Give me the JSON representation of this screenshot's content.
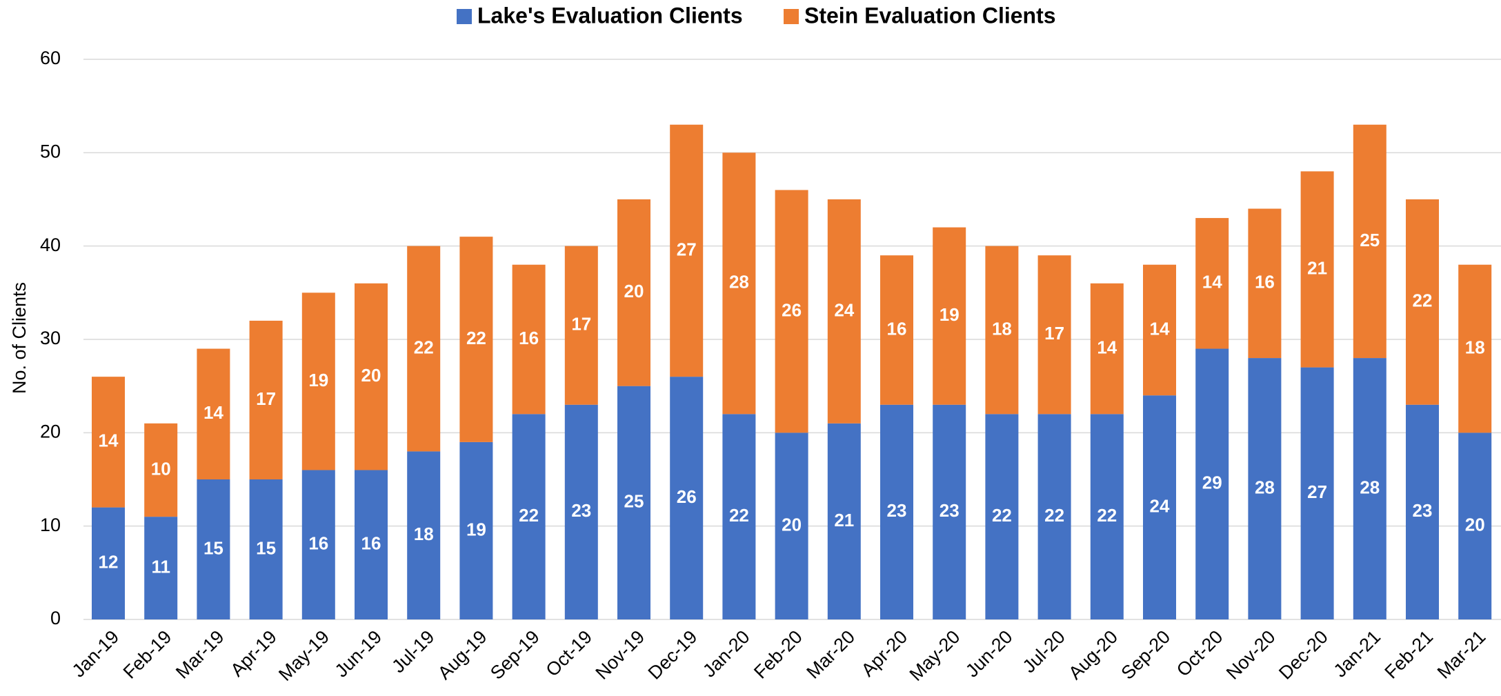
{
  "chart_data": {
    "type": "stacked_bar",
    "y_label": "No. of Clients",
    "categories": [
      "Jan-19",
      "Feb-19",
      "Mar-19",
      "Apr-19",
      "May-19",
      "Jun-19",
      "Jul-19",
      "Aug-19",
      "Sep-19",
      "Oct-19",
      "Nov-19",
      "Dec-19",
      "Jan-20",
      "Feb-20",
      "Mar-20",
      "Apr-20",
      "May-20",
      "Jun-20",
      "Jul-20",
      "Aug-20",
      "Sep-20",
      "Oct-20",
      "Nov-20",
      "Dec-20",
      "Jan-21",
      "Feb-21",
      "Mar-21"
    ],
    "series": [
      {
        "name": "Lake's Evaluation Clients",
        "color": "#4472c4",
        "values": [
          12,
          11,
          15,
          15,
          16,
          16,
          18,
          19,
          22,
          23,
          25,
          26,
          22,
          20,
          21,
          23,
          23,
          22,
          22,
          22,
          24,
          29,
          28,
          27,
          28,
          23,
          20
        ]
      },
      {
        "name": "Stein Evaluation Clients",
        "color": "#ed7d31",
        "values": [
          14,
          10,
          14,
          17,
          19,
          20,
          22,
          22,
          16,
          17,
          20,
          27,
          28,
          26,
          24,
          16,
          19,
          18,
          17,
          14,
          14,
          14,
          16,
          21,
          25,
          22,
          18
        ]
      }
    ],
    "ylim": [
      0,
      60
    ],
    "yticks": [
      0,
      10,
      20,
      30,
      40,
      50,
      60
    ],
    "grid": true,
    "legend": "top"
  }
}
